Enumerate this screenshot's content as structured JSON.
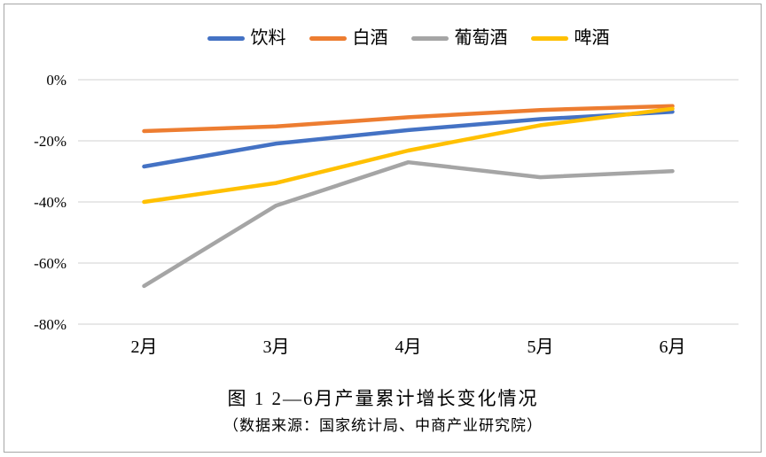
{
  "chart_data": {
    "type": "line",
    "categories": [
      "2月",
      "3月",
      "4月",
      "5月",
      "6月"
    ],
    "series": [
      {
        "name": "饮料",
        "color": "#4472C4",
        "values": [
          -28.4,
          -20.9,
          -16.5,
          -12.9,
          -10.5
        ]
      },
      {
        "name": "白酒",
        "color": "#ED7D31",
        "values": [
          -16.8,
          -15.3,
          -12.3,
          -9.9,
          -8.6
        ]
      },
      {
        "name": "葡萄酒",
        "color": "#A5A5A5",
        "values": [
          -67.5,
          -41.2,
          -27.0,
          -31.9,
          -29.9
        ]
      },
      {
        "name": "啤酒",
        "color": "#FFC000",
        "values": [
          -40.0,
          -33.8,
          -23.2,
          -14.9,
          -9.5
        ]
      }
    ],
    "y_ticks": [
      {
        "label": "0%",
        "value": 0
      },
      {
        "label": "-20%",
        "value": -20
      },
      {
        "label": "-40%",
        "value": -40
      },
      {
        "label": "-60%",
        "value": -60
      },
      {
        "label": "-80%",
        "value": -80
      }
    ],
    "ylim": [
      -80,
      0
    ],
    "grid": "horizontal",
    "legend_position": "top",
    "title": "图 1 2—6月产量累计增长变化情况",
    "subtitle": "（数据来源：国家统计局、中商产业研究院）"
  },
  "colors": {
    "gridline": "#d9d9d9",
    "frame_border": "#a6a6a6",
    "text": "#000000"
  }
}
